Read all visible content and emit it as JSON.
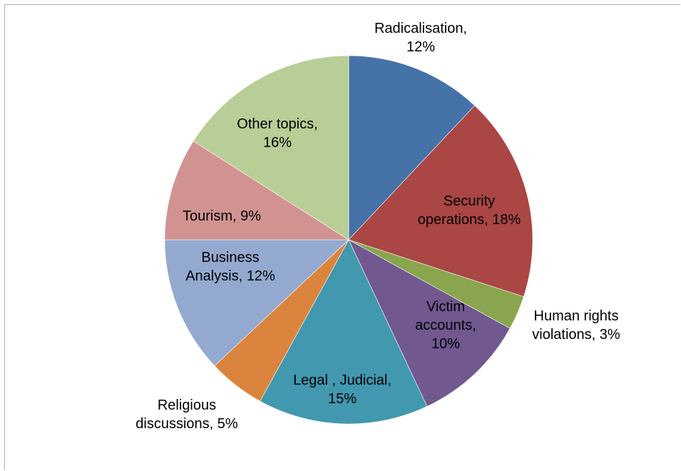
{
  "chart_data": {
    "type": "pie",
    "title": "",
    "start_angle_deg": 0,
    "direction": "clockwise",
    "legend": "none",
    "slices": [
      {
        "label_lines": [
          "Radicalisation,",
          "12%"
        ],
        "value": 12,
        "color": "#4572a7"
      },
      {
        "label_lines": [
          "Security",
          "operations, 18%"
        ],
        "value": 18,
        "color": "#aa4643"
      },
      {
        "label_lines": [
          "Human rights",
          "violations, 3%"
        ],
        "value": 3,
        "color": "#89a54e"
      },
      {
        "label_lines": [
          "Victim",
          "accounts,",
          "10%"
        ],
        "value": 10,
        "color": "#71588f"
      },
      {
        "label_lines": [
          "Legal , Judicial,",
          "15%"
        ],
        "value": 15,
        "color": "#4198af"
      },
      {
        "label_lines": [
          "Religious",
          "discussions, 5%"
        ],
        "value": 5,
        "color": "#db843d"
      },
      {
        "label_lines": [
          "Business",
          "Analysis, 12%"
        ],
        "value": 12,
        "color": "#93a9cf"
      },
      {
        "label_lines": [
          "Tourism, 9%"
        ],
        "value": 9,
        "color": "#d19392"
      },
      {
        "label_lines": [
          "Other topics,",
          "16%"
        ],
        "value": 16,
        "color": "#b9cd96"
      }
    ]
  }
}
